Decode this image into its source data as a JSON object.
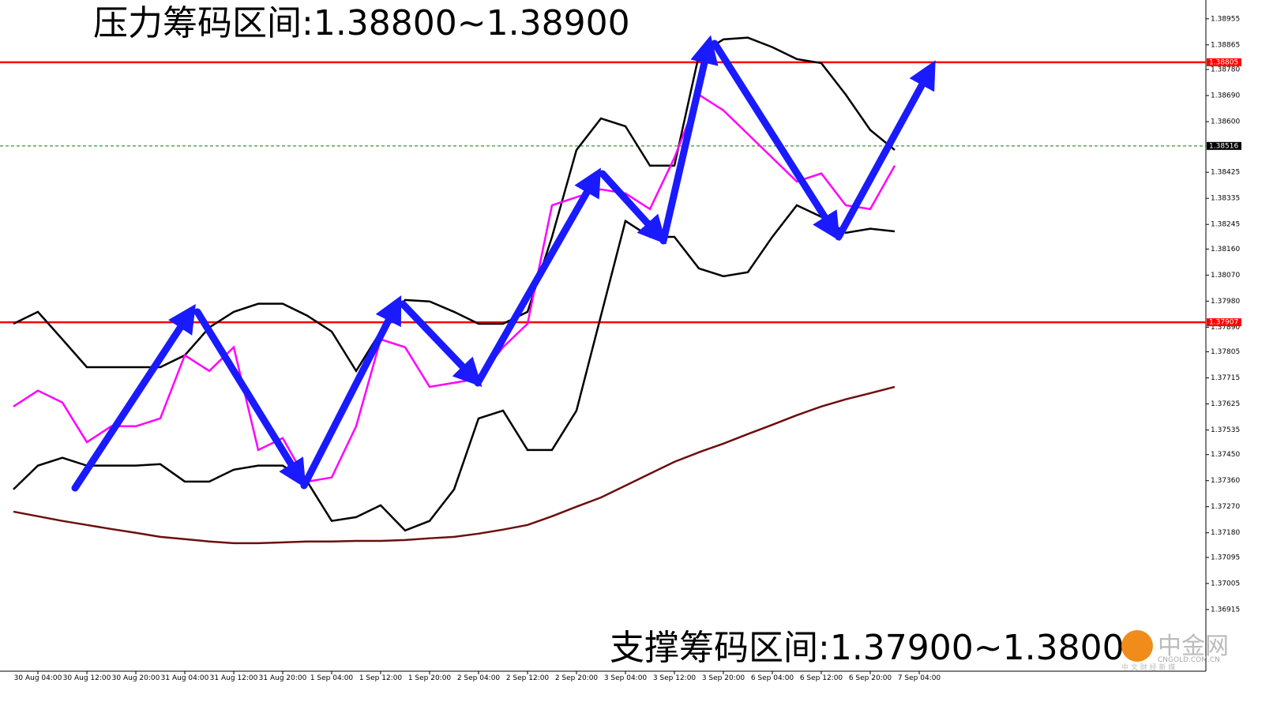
{
  "chart_data": {
    "type": "line",
    "annotations": [
      "压力筹码区间:1.38800~1.38900",
      "支撑筹码区间:1.37900~1.38000"
    ],
    "watermark": [
      "中金网",
      "CNGOLD.COM.CN",
      "中 文 财 经 新 媒"
    ],
    "x": [
      null,
      "30 Aug 04:00",
      null,
      "30 Aug 12:00",
      null,
      "30 Aug 20:00",
      null,
      "31 Aug 04:00",
      null,
      "31 Aug 12:00",
      null,
      "31 Aug 20:00",
      null,
      "1 Sep 04:00",
      null,
      "1 Sep 12:00",
      null,
      "1 Sep 20:00",
      null,
      "2 Sep 04:00",
      null,
      "2 Sep 12:00",
      null,
      "2 Sep 20:00",
      null,
      "3 Sep 04:00",
      null,
      "3 Sep 12:00",
      null,
      "3 Sep 20:00",
      null,
      "6 Sep 04:00",
      null,
      "6 Sep 12:00",
      null,
      "6 Sep 20:00",
      null,
      "7 Sep 04:00"
    ],
    "series": [
      {
        "color": "#000000",
        "values": [
          1.37902,
          1.37943,
          1.37848,
          1.37752,
          1.37752,
          1.37752,
          1.37752,
          1.37793,
          1.37889,
          1.37943,
          1.37971,
          1.37971,
          1.3793,
          1.37875,
          1.37739,
          1.37875,
          1.37984,
          1.37979,
          1.37943,
          1.37902,
          1.37902,
          1.37943,
          1.38202,
          1.38502,
          1.38611,
          1.38584,
          1.38448,
          1.38448,
          1.3883,
          1.38884,
          1.3889,
          1.38857,
          1.38816,
          1.38802,
          1.38693,
          1.38571,
          1.38502,
          null
        ]
      },
      {
        "color": "#000000",
        "values": [
          1.3733,
          1.37412,
          1.37439,
          1.37412,
          1.37412,
          1.37412,
          1.37417,
          1.37357,
          1.37357,
          1.37398,
          1.37412,
          1.37412,
          1.37357,
          1.37221,
          1.37234,
          1.37275,
          1.37188,
          1.37221,
          1.3733,
          1.37575,
          1.37602,
          1.37466,
          1.37466,
          1.37602,
          1.3793,
          1.38257,
          1.38202,
          1.38202,
          1.38093,
          1.38066,
          1.3808,
          1.38202,
          1.38311,
          1.38271,
          1.38216,
          1.3823,
          1.38221,
          null
        ]
      },
      {
        "color": "#6b0f0f",
        "values": [
          1.37253,
          1.37237,
          1.37221,
          1.37207,
          1.37193,
          1.3718,
          1.37166,
          1.37158,
          1.3715,
          1.37144,
          1.37144,
          1.37147,
          1.3715,
          1.3715,
          1.37152,
          1.37152,
          1.37155,
          1.37161,
          1.37166,
          1.37177,
          1.37191,
          1.37207,
          1.37237,
          1.3727,
          1.37302,
          1.37343,
          1.37384,
          1.37425,
          1.37458,
          1.37488,
          1.37521,
          1.37553,
          1.37586,
          1.37616,
          1.37641,
          1.37662,
          1.37684,
          null
        ]
      },
      {
        "color": "#ff00ff",
        "values": [
          1.37616,
          1.37671,
          1.3763,
          1.37493,
          1.37548,
          1.37548,
          1.37575,
          1.37793,
          1.37739,
          1.37821,
          1.37466,
          1.37507,
          1.37357,
          1.37371,
          1.37548,
          1.37848,
          1.37821,
          1.37684,
          1.37698,
          1.37712,
          1.37821,
          1.37902,
          1.38311,
          1.38339,
          1.38366,
          1.38352,
          1.38298,
          1.38475,
          1.38693,
          1.38639,
          1.38557,
          1.38475,
          1.38393,
          1.38421,
          1.38311,
          1.38298,
          1.38448,
          null
        ]
      }
    ],
    "ylim": [
      1.36702,
      1.3902
    ],
    "yticks": [
      {
        "value": 1.38955,
        "label": "1.38955"
      },
      {
        "value": 1.38865,
        "label": "1.38865"
      },
      {
        "value": 1.3878,
        "label": "1.38780"
      },
      {
        "value": 1.3869,
        "label": "1.38690"
      },
      {
        "value": 1.386,
        "label": "1.38600"
      },
      {
        "value": 1.38425,
        "label": "1.38425"
      },
      {
        "value": 1.38335,
        "label": "1.38335"
      },
      {
        "value": 1.38245,
        "label": "1.38245"
      },
      {
        "value": 1.3816,
        "label": "1.38160"
      },
      {
        "value": 1.3807,
        "label": "1.38070"
      },
      {
        "value": 1.3798,
        "label": "1.37980"
      },
      {
        "value": 1.3789,
        "label": "1.37890"
      },
      {
        "value": 1.37805,
        "label": "1.37805"
      },
      {
        "value": 1.37715,
        "label": "1.37715"
      },
      {
        "value": 1.37625,
        "label": "1.37625"
      },
      {
        "value": 1.37535,
        "label": "1.37535"
      },
      {
        "value": 1.3745,
        "label": "1.37450"
      },
      {
        "value": 1.3736,
        "label": "1.37360"
      },
      {
        "value": 1.3727,
        "label": "1.37270"
      },
      {
        "value": 1.3718,
        "label": "1.37180"
      },
      {
        "value": 1.37095,
        "label": "1.37095"
      },
      {
        "value": 1.37005,
        "label": "1.37005"
      },
      {
        "value": 1.36915,
        "label": "1.36915"
      }
    ],
    "hlines": [
      {
        "value": 1.38805,
        "color": "#ff0000",
        "style": "solid"
      },
      {
        "value": 1.38516,
        "color": "#008000",
        "style": "dashed"
      },
      {
        "value": 1.37907,
        "color": "#ff0000",
        "style": "solid"
      }
    ]
  }
}
